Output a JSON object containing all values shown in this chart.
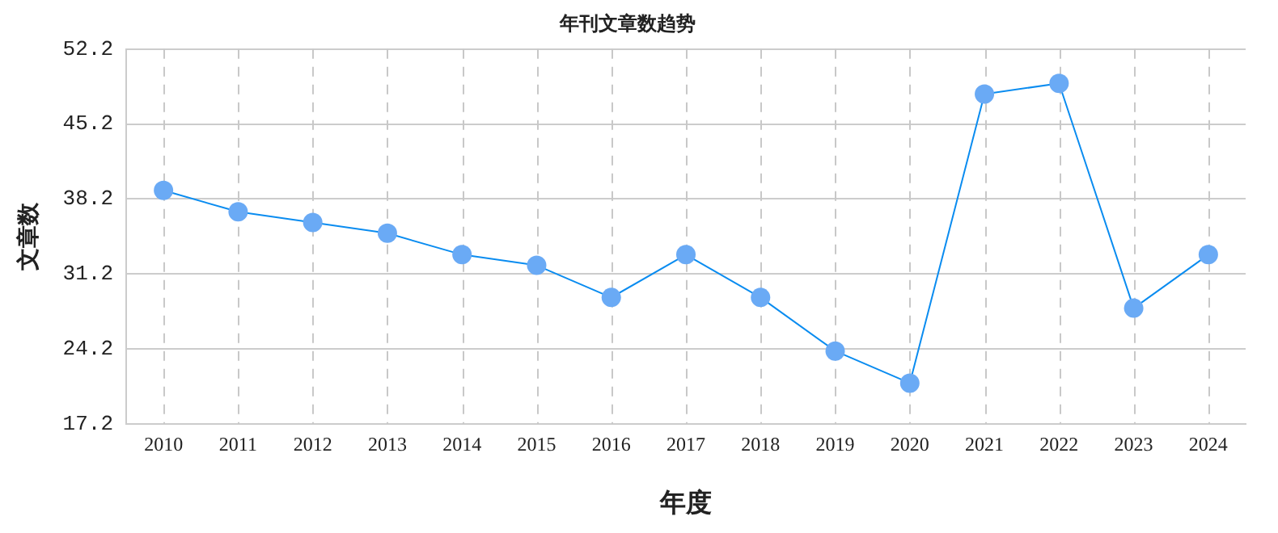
{
  "chart_data": {
    "type": "line",
    "title": "年刊文章数趋势",
    "xlabel": "年度",
    "ylabel": "文章数",
    "categories": [
      "2010",
      "2011",
      "2012",
      "2013",
      "2014",
      "2015",
      "2016",
      "2017",
      "2018",
      "2019",
      "2020",
      "2021",
      "2022",
      "2023",
      "2024"
    ],
    "series": [
      {
        "color": "#0a8cf0",
        "values": [
          39,
          37,
          36,
          35,
          33,
          32,
          29,
          33,
          29,
          24,
          21,
          48,
          49,
          28,
          33
        ]
      }
    ],
    "ylim": [
      17.2,
      52.2
    ],
    "yticks": [
      17.2,
      24.2,
      31.2,
      38.2,
      45.2,
      52.2
    ],
    "grid": true,
    "marker": "circle",
    "line_style": "solid",
    "legend": false
  }
}
